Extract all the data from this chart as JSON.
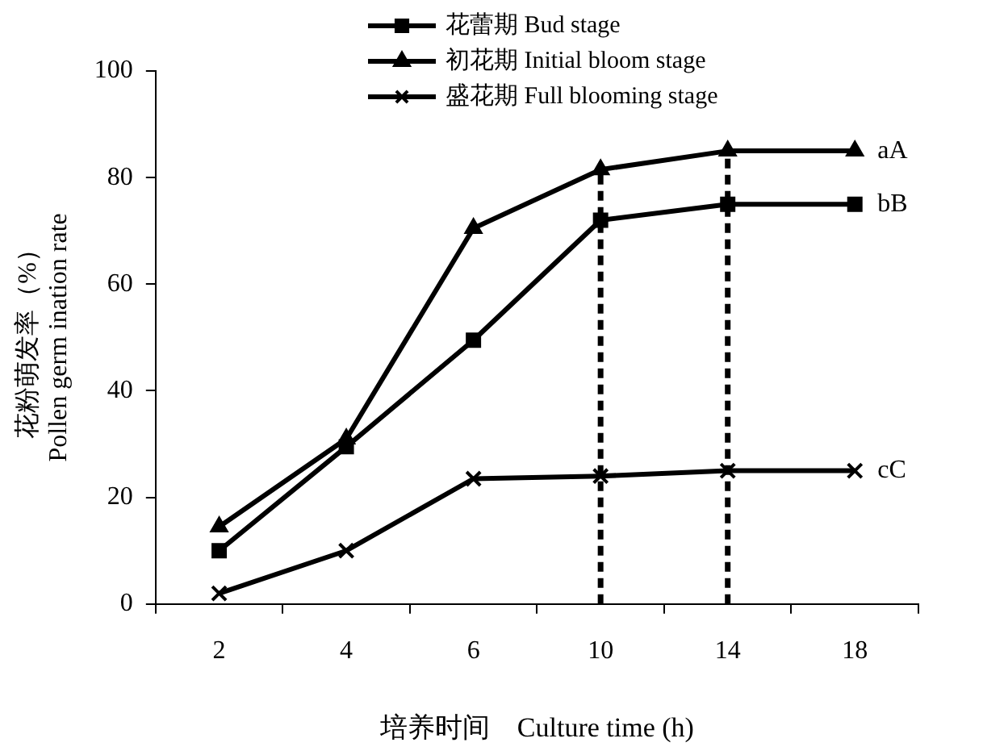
{
  "chart_data": {
    "type": "line",
    "xlabel": "培养时间    Culture time (h)",
    "ylabel": "花粉萌发率（%）\nPollen germ ination rate",
    "categories": [
      "2",
      "4",
      "6",
      "10",
      "14",
      "18"
    ],
    "series": [
      {
        "name": "花蕾期 Bud stage",
        "color": "#000000",
        "marker": "square",
        "values": [
          10,
          29.5,
          49.5,
          72,
          75,
          75
        ]
      },
      {
        "name": "初花期 Initial bloom stage",
        "color": "#000000",
        "marker": "triangle",
        "values": [
          14.5,
          31,
          70.5,
          81.5,
          85,
          85
        ]
      },
      {
        "name": "盛花期 Full blooming stage",
        "color": "#000000",
        "marker": "cross",
        "values": [
          2,
          10,
          23.5,
          24,
          25,
          25
        ]
      }
    ],
    "ylim": [
      0,
      100
    ],
    "yticks": [
      0,
      20,
      40,
      60,
      80,
      100
    ],
    "grid": false,
    "legend": "top",
    "line_style": "solid",
    "ref_lines": [
      {
        "axis": "x",
        "value": "10",
        "line_style": "dashed"
      },
      {
        "axis": "x",
        "value": "14",
        "line_style": "dashed"
      }
    ],
    "annotations": [
      {
        "text": "aA",
        "x": "18",
        "y": 85
      },
      {
        "text": "bB",
        "x": "18",
        "y": 75
      },
      {
        "text": "cC",
        "x": "18",
        "y": 25
      }
    ]
  }
}
